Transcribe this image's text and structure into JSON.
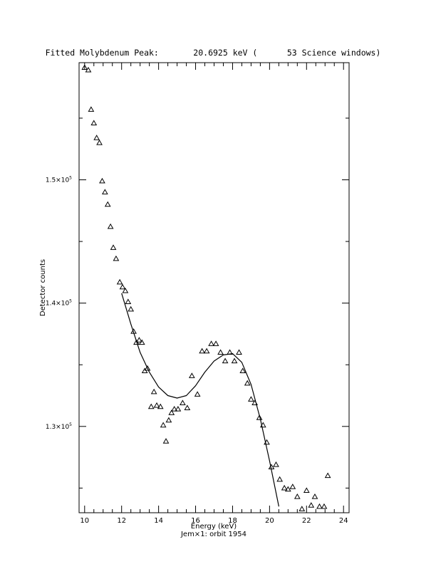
{
  "chart_data": {
    "type": "scatter",
    "title": "Fitted Molybdenum Peak:       20.6925 keV (      53 Science windows)",
    "xlabel": "Energy (keV)",
    "ylabel": "Detector counts",
    "footer": "Jem×1: orbit 1954",
    "xlim": [
      9.7,
      24.3
    ],
    "ylim": [
      123000,
      159500
    ],
    "x_ticks": [
      10,
      12,
      14,
      16,
      18,
      20,
      22,
      24
    ],
    "x_tick_labels": [
      "10",
      "12",
      "14",
      "16",
      "18",
      "20",
      "22",
      "24"
    ],
    "y_ticks": [
      130000,
      140000,
      150000
    ],
    "y_tick_labels": [
      {
        "mant": "1.3×10",
        "exp": "5"
      },
      {
        "mant": "1.4×10",
        "exp": "5"
      },
      {
        "mant": "1.5×10",
        "exp": "5"
      }
    ],
    "marker": "triangle",
    "series": [
      {
        "points": [
          [
            10.0,
            159100
          ],
          [
            10.2,
            158900
          ],
          [
            10.35,
            155700
          ],
          [
            10.5,
            154600
          ],
          [
            10.65,
            153400
          ],
          [
            10.8,
            153000
          ],
          [
            10.95,
            149900
          ],
          [
            11.1,
            149000
          ],
          [
            11.25,
            148000
          ],
          [
            11.4,
            146200
          ],
          [
            11.55,
            144500
          ],
          [
            11.7,
            143600
          ],
          [
            11.9,
            141700
          ],
          [
            12.05,
            141300
          ],
          [
            12.2,
            141000
          ],
          [
            12.35,
            140100
          ],
          [
            12.5,
            139500
          ],
          [
            12.65,
            137700
          ],
          [
            12.8,
            136800
          ],
          [
            12.95,
            137000
          ],
          [
            13.1,
            136800
          ],
          [
            13.25,
            134500
          ],
          [
            13.4,
            134700
          ],
          [
            13.6,
            131600
          ],
          [
            13.75,
            132800
          ],
          [
            13.9,
            131700
          ],
          [
            14.1,
            131600
          ],
          [
            14.25,
            130100
          ],
          [
            14.4,
            128800
          ],
          [
            14.55,
            130500
          ],
          [
            14.7,
            131100
          ],
          [
            14.85,
            131400
          ],
          [
            15.05,
            131400
          ],
          [
            15.3,
            131900
          ],
          [
            15.55,
            131500
          ],
          [
            15.8,
            134100
          ],
          [
            16.1,
            132600
          ],
          [
            16.35,
            136100
          ],
          [
            16.6,
            136100
          ],
          [
            16.85,
            136700
          ],
          [
            17.1,
            136700
          ],
          [
            17.35,
            136000
          ],
          [
            17.6,
            135300
          ],
          [
            17.85,
            136000
          ],
          [
            18.1,
            135300
          ],
          [
            18.35,
            136000
          ],
          [
            18.55,
            134500
          ],
          [
            18.8,
            133500
          ],
          [
            19.0,
            132200
          ],
          [
            19.2,
            131900
          ],
          [
            19.45,
            130700
          ],
          [
            19.65,
            130100
          ],
          [
            19.85,
            128700
          ],
          [
            20.1,
            126700
          ],
          [
            20.35,
            126900
          ],
          [
            20.55,
            125700
          ],
          [
            20.8,
            125000
          ],
          [
            21.0,
            124900
          ],
          [
            21.25,
            125100
          ],
          [
            21.5,
            124300
          ],
          [
            21.75,
            123300
          ],
          [
            22.0,
            124800
          ],
          [
            22.25,
            123600
          ],
          [
            22.45,
            124300
          ],
          [
            22.7,
            123500
          ],
          [
            22.95,
            123500
          ],
          [
            23.15,
            126000
          ]
        ]
      }
    ],
    "fit_curve": [
      [
        12.0,
        140800
      ],
      [
        12.5,
        138300
      ],
      [
        13.0,
        136000
      ],
      [
        13.5,
        134400
      ],
      [
        14.0,
        133200
      ],
      [
        14.5,
        132500
      ],
      [
        15.0,
        132300
      ],
      [
        15.5,
        132500
      ],
      [
        16.0,
        133300
      ],
      [
        16.5,
        134400
      ],
      [
        17.0,
        135300
      ],
      [
        17.5,
        135800
      ],
      [
        18.0,
        135900
      ],
      [
        18.5,
        135200
      ],
      [
        19.0,
        133400
      ],
      [
        19.5,
        130600
      ],
      [
        20.0,
        127200
      ],
      [
        20.5,
        123500
      ]
    ]
  }
}
